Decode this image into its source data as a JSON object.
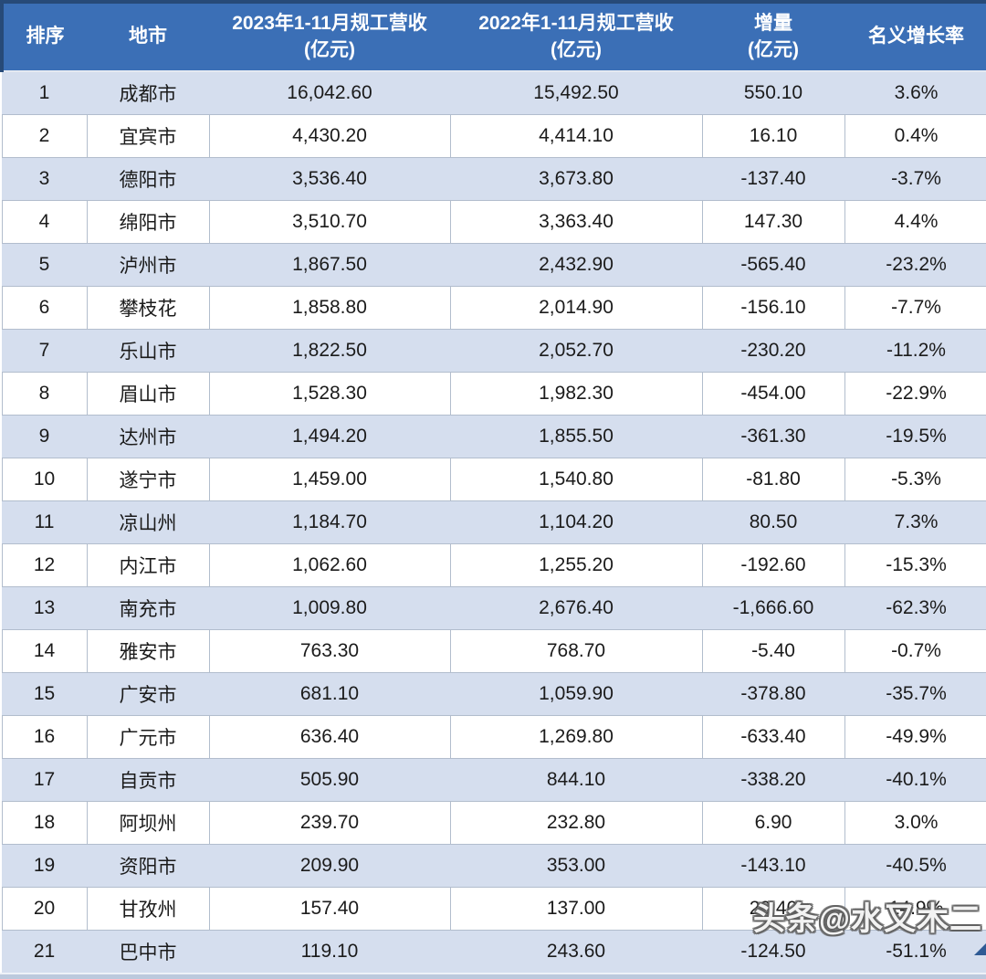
{
  "table": {
    "columns": [
      {
        "key": "rank",
        "label": "排序"
      },
      {
        "key": "city",
        "label": "地市"
      },
      {
        "key": "rev2023",
        "label": "2023年1-11月规工营收",
        "label2": "(亿元)"
      },
      {
        "key": "rev2022",
        "label": "2022年1-11月规工营收",
        "label2": "(亿元)"
      },
      {
        "key": "delta",
        "label": "增量",
        "label2": "(亿元)"
      },
      {
        "key": "growth",
        "label": "名义增长率"
      }
    ],
    "rows": [
      [
        "1",
        "成都市",
        "16,042.60",
        "15,492.50",
        "550.10",
        "3.6%"
      ],
      [
        "2",
        "宜宾市",
        "4,430.20",
        "4,414.10",
        "16.10",
        "0.4%"
      ],
      [
        "3",
        "德阳市",
        "3,536.40",
        "3,673.80",
        "-137.40",
        "-3.7%"
      ],
      [
        "4",
        "绵阳市",
        "3,510.70",
        "3,363.40",
        "147.30",
        "4.4%"
      ],
      [
        "5",
        "泸州市",
        "1,867.50",
        "2,432.90",
        "-565.40",
        "-23.2%"
      ],
      [
        "6",
        "攀枝花",
        "1,858.80",
        "2,014.90",
        "-156.10",
        "-7.7%"
      ],
      [
        "7",
        "乐山市",
        "1,822.50",
        "2,052.70",
        "-230.20",
        "-11.2%"
      ],
      [
        "8",
        "眉山市",
        "1,528.30",
        "1,982.30",
        "-454.00",
        "-22.9%"
      ],
      [
        "9",
        "达州市",
        "1,494.20",
        "1,855.50",
        "-361.30",
        "-19.5%"
      ],
      [
        "10",
        "遂宁市",
        "1,459.00",
        "1,540.80",
        "-81.80",
        "-5.3%"
      ],
      [
        "11",
        "凉山州",
        "1,184.70",
        "1,104.20",
        "80.50",
        "7.3%"
      ],
      [
        "12",
        "内江市",
        "1,062.60",
        "1,255.20",
        "-192.60",
        "-15.3%"
      ],
      [
        "13",
        "南充市",
        "1,009.80",
        "2,676.40",
        "-1,666.60",
        "-62.3%"
      ],
      [
        "14",
        "雅安市",
        "763.30",
        "768.70",
        "-5.40",
        "-0.7%"
      ],
      [
        "15",
        "广安市",
        "681.10",
        "1,059.90",
        "-378.80",
        "-35.7%"
      ],
      [
        "16",
        "广元市",
        "636.40",
        "1,269.80",
        "-633.40",
        "-49.9%"
      ],
      [
        "17",
        "自贡市",
        "505.90",
        "844.10",
        "-338.20",
        "-40.1%"
      ],
      [
        "18",
        "阿坝州",
        "239.70",
        "232.80",
        "6.90",
        "3.0%"
      ],
      [
        "19",
        "资阳市",
        "209.90",
        "353.00",
        "-143.10",
        "-40.5%"
      ],
      [
        "20",
        "甘孜州",
        "157.40",
        "137.00",
        "20.40",
        "14.9%"
      ],
      [
        "21",
        "巴中市",
        "119.10",
        "243.60",
        "-124.50",
        "-51.1%"
      ]
    ]
  },
  "watermark": {
    "text": "头条@水又木二"
  },
  "colors": {
    "header_bg": "#3b6fb6",
    "header_border": "#274a78",
    "stripe_bg": "#d5deee",
    "cell_border": "#b2bdcd",
    "text": "#1b1b1b"
  }
}
